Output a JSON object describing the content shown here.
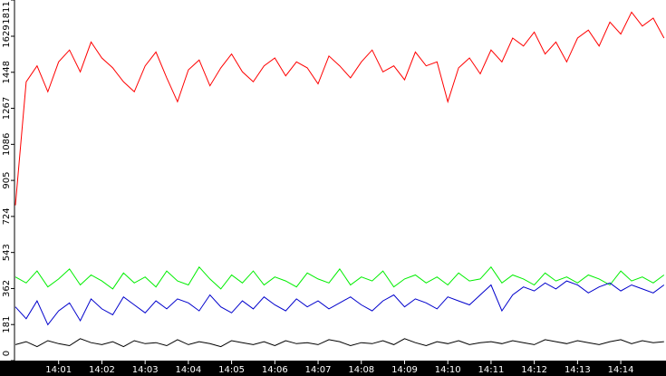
{
  "chart_data": {
    "type": "line",
    "categories": [
      null,
      null,
      null,
      null,
      "14:01",
      null,
      null,
      null,
      "14:02",
      null,
      null,
      null,
      "14:03",
      null,
      null,
      null,
      "14:04",
      null,
      null,
      null,
      "14:05",
      null,
      null,
      null,
      "14:06",
      null,
      null,
      null,
      "14:07",
      null,
      null,
      null,
      "14:08",
      null,
      null,
      null,
      "14:09",
      null,
      null,
      null,
      "14:10",
      null,
      null,
      null,
      "14:11",
      null,
      null,
      null,
      "14:12",
      null,
      null,
      null,
      "14:13",
      null,
      null,
      null,
      "14:14",
      null,
      null,
      null,
      null
    ],
    "ylim": [
      0,
      1811
    ],
    "yticks": [
      0,
      181,
      362,
      543,
      724,
      905,
      1086,
      1267,
      1448,
      1629,
      1811
    ],
    "series": [
      {
        "color": "#ff0000",
        "values": [
          780,
          1400,
          1480,
          1350,
          1500,
          1560,
          1450,
          1600,
          1520,
          1470,
          1400,
          1350,
          1480,
          1550,
          1420,
          1300,
          1460,
          1510,
          1380,
          1470,
          1540,
          1450,
          1400,
          1480,
          1520,
          1430,
          1500,
          1470,
          1390,
          1530,
          1480,
          1420,
          1500,
          1560,
          1450,
          1480,
          1410,
          1550,
          1480,
          1500,
          1300,
          1470,
          1520,
          1440,
          1560,
          1500,
          1620,
          1580,
          1650,
          1540,
          1600,
          1500,
          1620,
          1660,
          1580,
          1700,
          1640,
          1750,
          1680,
          1720,
          1620
        ]
      },
      {
        "color": "#00ee00",
        "values": [
          420,
          390,
          450,
          370,
          410,
          460,
          380,
          430,
          400,
          360,
          440,
          390,
          420,
          370,
          450,
          400,
          380,
          470,
          410,
          360,
          430,
          390,
          450,
          380,
          420,
          400,
          370,
          440,
          410,
          390,
          460,
          380,
          420,
          400,
          450,
          370,
          410,
          430,
          390,
          420,
          380,
          440,
          400,
          410,
          470,
          390,
          430,
          410,
          380,
          440,
          400,
          420,
          390,
          430,
          410,
          380,
          450,
          400,
          420,
          390,
          430
        ]
      },
      {
        "color": "#0000cc",
        "values": [
          270,
          210,
          300,
          180,
          250,
          290,
          200,
          310,
          260,
          230,
          320,
          280,
          240,
          300,
          260,
          310,
          290,
          250,
          330,
          270,
          240,
          300,
          260,
          320,
          280,
          250,
          310,
          270,
          300,
          260,
          290,
          320,
          280,
          250,
          300,
          330,
          270,
          310,
          290,
          260,
          320,
          300,
          280,
          330,
          380,
          250,
          330,
          370,
          350,
          390,
          360,
          400,
          380,
          340,
          370,
          390,
          350,
          380,
          360,
          340,
          380
        ]
      },
      {
        "color": "#000000",
        "values": [
          80,
          95,
          70,
          100,
          85,
          75,
          110,
          90,
          80,
          95,
          70,
          100,
          85,
          90,
          75,
          105,
          80,
          95,
          85,
          70,
          100,
          90,
          80,
          95,
          75,
          100,
          85,
          90,
          80,
          105,
          95,
          75,
          90,
          85,
          100,
          80,
          110,
          90,
          75,
          95,
          85,
          100,
          80,
          90,
          95,
          85,
          100,
          90,
          80,
          105,
          95,
          85,
          100,
          90,
          80,
          95,
          105,
          85,
          100,
          90,
          95
        ]
      }
    ]
  }
}
